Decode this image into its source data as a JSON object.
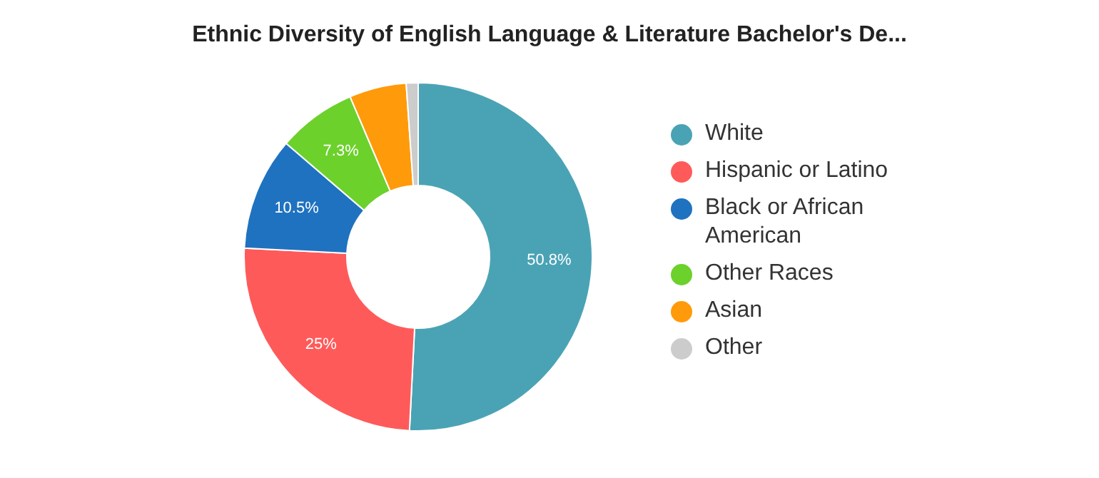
{
  "chart_data": {
    "type": "donut",
    "title": "Ethnic Diversity of English Language & Literature Bachelor's De...",
    "categories": [
      "White",
      "Hispanic or Latino",
      "Black or African American",
      "Other Races",
      "Asian",
      "Other"
    ],
    "values": [
      50.8,
      25,
      10.5,
      7.3,
      5.3,
      1.1
    ],
    "colors": [
      "#4aa3b5",
      "#ff5a5a",
      "#1f72bf",
      "#6cd12b",
      "#ff9a0a",
      "#cccccc"
    ],
    "value_labels": [
      "50.8%",
      "25%",
      "10.5%",
      "7.3%",
      null,
      null
    ],
    "legend": "right"
  }
}
